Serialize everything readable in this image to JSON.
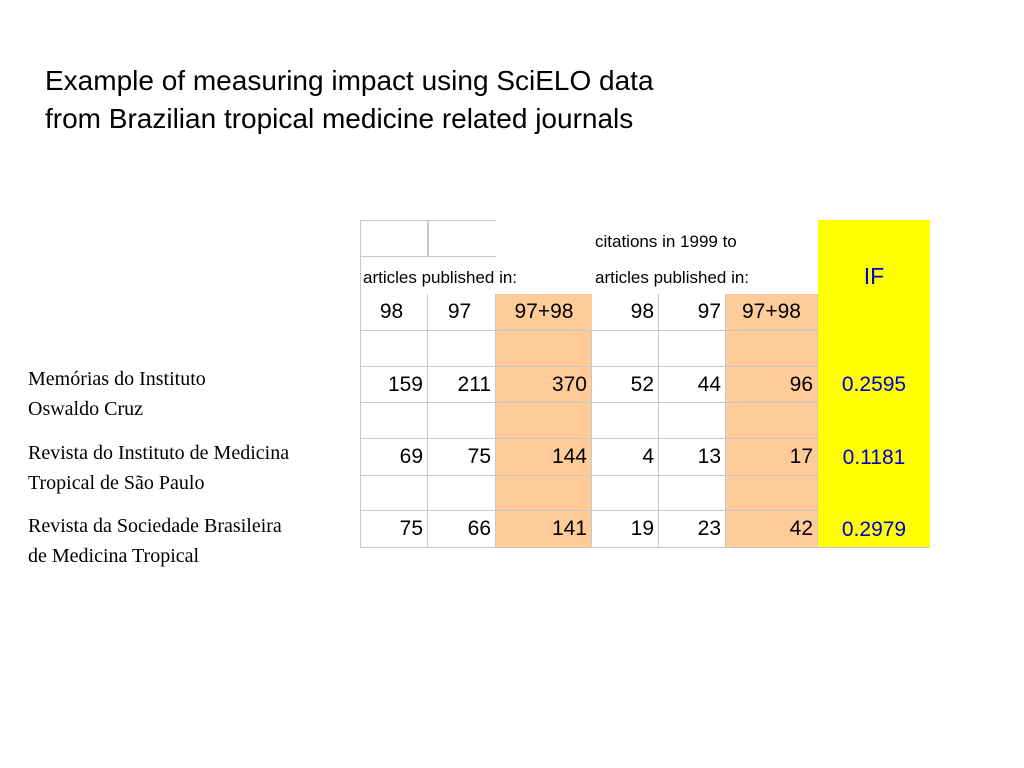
{
  "title": {
    "line1": "Example of measuring impact using SciELO data",
    "line2": "from Brazilian tropical medicine related journals"
  },
  "table": {
    "header_articles": "articles published in:",
    "header_citations_line1": "citations in 1999 to",
    "header_citations_line2": "articles published in:",
    "header_if": "IF",
    "year_labels": [
      "98",
      "97",
      "97+98",
      "98",
      "97",
      "97+98"
    ],
    "rows": [
      {
        "journal_line1": "Memórias do Instituto",
        "journal_line2": "Oswaldo Cruz",
        "a98": "159",
        "a97": "211",
        "asum": "370",
        "c98": "52",
        "c97": "44",
        "csum": "96",
        "if": "0.2595"
      },
      {
        "journal_line1": "Revista do Instituto de Medicina",
        "journal_line2": "Tropical de São Paulo",
        "a98": "69",
        "a97": "75",
        "asum": "144",
        "c98": "4",
        "c97": "13",
        "csum": "17",
        "if": "0.1181"
      },
      {
        "journal_line1": "Revista da Sociedade Brasileira",
        "journal_line2": "de Medicina Tropical",
        "a98": "75",
        "a97": "66",
        "asum": "141",
        "c98": "19",
        "c97": "23",
        "csum": "42",
        "if": "0.2979"
      }
    ],
    "colors": {
      "peach": "#ffcc99",
      "yellow": "#ffff00",
      "if_text": "#0000cc",
      "grid": "#c8c8c8"
    }
  }
}
